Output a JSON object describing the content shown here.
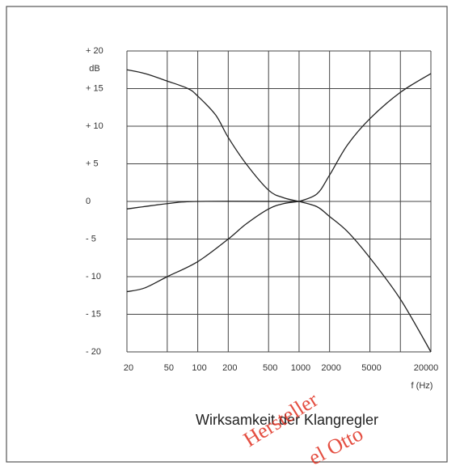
{
  "chart_data": {
    "type": "line",
    "title": "Wirksamkeit der Klangregler",
    "y_label": "dB",
    "x_label": "f (Hz)",
    "annotations": [
      "Hersteller",
      "el Otto"
    ],
    "xscale": "log",
    "xlim": [
      20,
      20000
    ],
    "ylim": [
      -20,
      20
    ],
    "xticks": [
      20,
      50,
      100,
      200,
      500,
      1000,
      2000,
      5000,
      20000
    ],
    "xgrid": [
      20,
      50,
      100,
      200,
      500,
      1000,
      2000,
      5000,
      10000,
      20000
    ],
    "yticks": [
      {
        "value": 20,
        "label": "+ 20"
      },
      {
        "value": 15,
        "label": "+ 15"
      },
      {
        "value": 10,
        "label": "+ 10"
      },
      {
        "value": 5,
        "label": "+  5"
      },
      0,
      {
        "value": -5,
        "label": "-  5"
      },
      {
        "value": -10,
        "label": "- 10"
      },
      {
        "value": -15,
        "label": "- 15"
      },
      {
        "value": -20,
        "label": "- 20"
      }
    ],
    "grid": true,
    "color": "#222222",
    "series": [
      {
        "x": [
          20,
          30,
          50,
          80,
          100,
          150,
          200,
          300,
          500,
          700,
          1000
        ],
        "values": [
          17.5,
          17,
          16,
          15,
          14,
          11.5,
          8.5,
          5,
          1.5,
          0.5,
          0
        ]
      },
      {
        "x": [
          1000,
          1500,
          2000,
          3000,
          5000,
          10000,
          20000
        ],
        "values": [
          0,
          1,
          3.5,
          7.5,
          11,
          14.5,
          17
        ]
      },
      {
        "x": [
          20,
          30,
          50,
          100,
          200,
          300,
          500,
          700,
          1000
        ],
        "values": [
          -12,
          -11.5,
          -10,
          -8,
          -5,
          -3,
          -1,
          -0.3,
          0
        ]
      },
      {
        "x": [
          1000,
          1500,
          2000,
          3000,
          5000,
          10000,
          20000
        ],
        "values": [
          0,
          -0.7,
          -2,
          -4,
          -7.5,
          -13,
          -20
        ]
      },
      {
        "x": [
          20,
          50,
          100,
          1000
        ],
        "values": [
          -1,
          -0.3,
          0,
          0
        ]
      }
    ]
  }
}
